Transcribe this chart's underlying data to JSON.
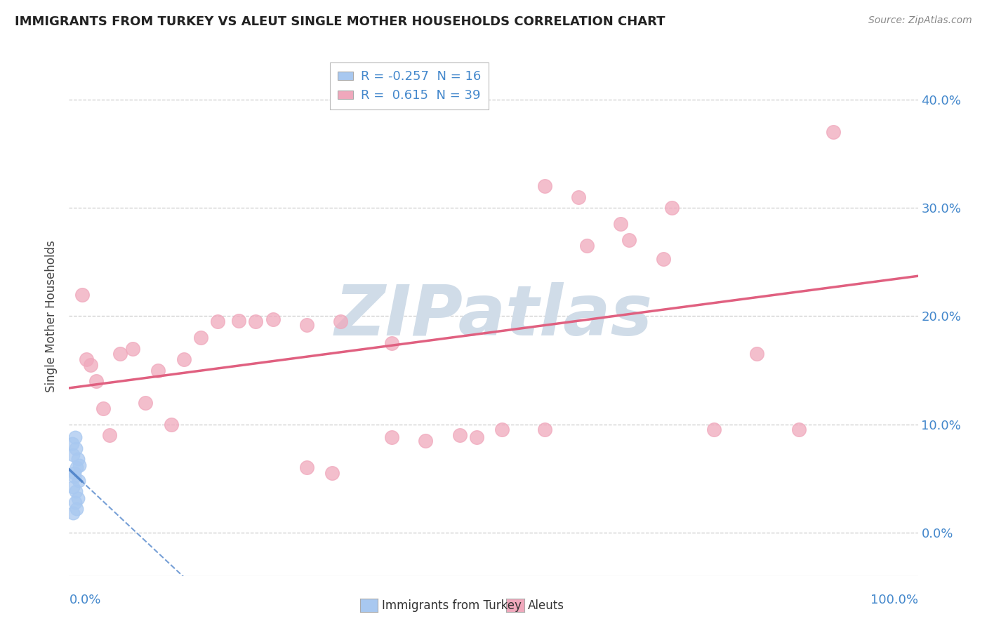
{
  "title": "IMMIGRANTS FROM TURKEY VS ALEUT SINGLE MOTHER HOUSEHOLDS CORRELATION CHART",
  "source": "Source: ZipAtlas.com",
  "ylabel": "Single Mother Households",
  "ytick_vals": [
    0.0,
    0.1,
    0.2,
    0.3,
    0.4
  ],
  "ytick_labels": [
    "0.0%",
    "10.0%",
    "20.0%",
    "30.0%",
    "40.0%"
  ],
  "legend_blue_r": "-0.257",
  "legend_blue_n": "16",
  "legend_pink_r": "0.615",
  "legend_pink_n": "39",
  "legend_label_blue": "Immigrants from Turkey",
  "legend_label_pink": "Aleuts",
  "bg_color": "#ffffff",
  "blue_color": "#a8c8f0",
  "pink_color": "#f0a8bc",
  "blue_line_color": "#5588cc",
  "pink_line_color": "#e06080",
  "blue_points_x": [
    0.005,
    0.008,
    0.01,
    0.012,
    0.006,
    0.009,
    0.004,
    0.007,
    0.011,
    0.005,
    0.008,
    0.006,
    0.01,
    0.007,
    0.009,
    0.005
  ],
  "blue_points_y": [
    0.072,
    0.078,
    0.068,
    0.062,
    0.055,
    0.06,
    0.082,
    0.088,
    0.048,
    0.042,
    0.038,
    0.052,
    0.032,
    0.028,
    0.022,
    0.018
  ],
  "pink_points_x": [
    0.015,
    0.02,
    0.025,
    0.032,
    0.04,
    0.048,
    0.06,
    0.075,
    0.09,
    0.105,
    0.12,
    0.135,
    0.155,
    0.175,
    0.2,
    0.22,
    0.24,
    0.28,
    0.32,
    0.38,
    0.42,
    0.46,
    0.51,
    0.56,
    0.61,
    0.66,
    0.71,
    0.76,
    0.81,
    0.86,
    0.9,
    0.65,
    0.7,
    0.6,
    0.56,
    0.48,
    0.38,
    0.31,
    0.28
  ],
  "pink_points_y": [
    0.22,
    0.16,
    0.155,
    0.14,
    0.115,
    0.09,
    0.165,
    0.17,
    0.12,
    0.15,
    0.1,
    0.16,
    0.18,
    0.195,
    0.196,
    0.195,
    0.197,
    0.192,
    0.195,
    0.175,
    0.085,
    0.09,
    0.095,
    0.095,
    0.265,
    0.27,
    0.3,
    0.095,
    0.165,
    0.095,
    0.37,
    0.285,
    0.253,
    0.31,
    0.32,
    0.088,
    0.088,
    0.055,
    0.06
  ],
  "xlim": [
    0.0,
    1.0
  ],
  "ylim": [
    -0.04,
    0.44
  ],
  "watermark_text": "ZIPatlas",
  "watermark_color": "#d0dce8",
  "grid_color": "#cccccc",
  "grid_linestyle": "--"
}
